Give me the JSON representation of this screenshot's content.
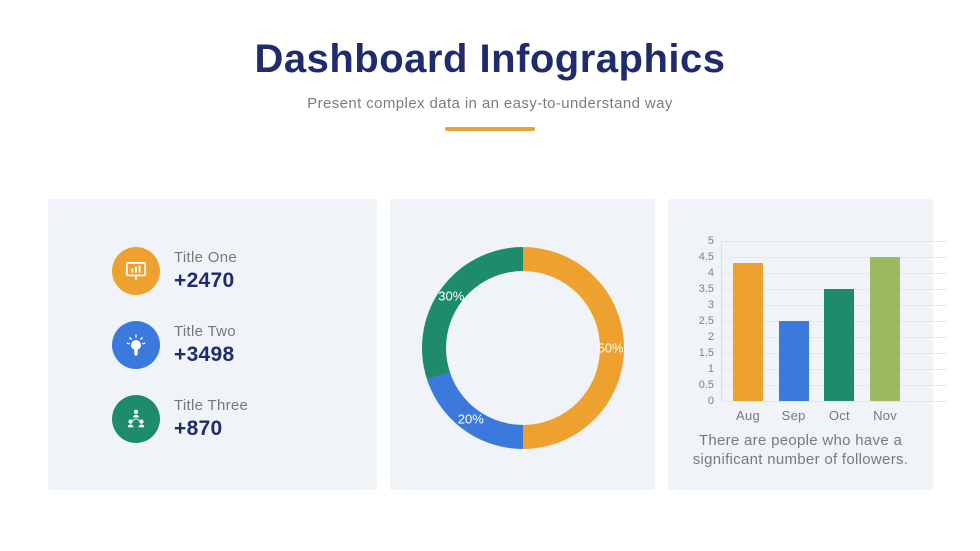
{
  "slide": {
    "title": "Dashboard Infographics",
    "subtitle": "Present complex data in an easy-to-understand way",
    "accent_color": "#E9A23B",
    "heading_color": "#1F2B6C",
    "panel_background": "#F0F4F8"
  },
  "stats": {
    "items": [
      {
        "label": "Title One",
        "value": "+2470",
        "color": "#EFA12F",
        "icon": "presentation-chart-icon"
      },
      {
        "label": "Title Two",
        "value": "+3498",
        "color": "#3B7ADC",
        "icon": "lightbulb-icon"
      },
      {
        "label": "Title Three",
        "value": "+870",
        "color": "#1E8C6B",
        "icon": "org-chart-icon"
      }
    ]
  },
  "chart_data": [
    {
      "type": "pie",
      "subtype": "donut",
      "start_angle_deg": 0,
      "direction": "clockwise",
      "label_color": "#FFFFFF",
      "slices": [
        {
          "label": "50%",
          "value": 50,
          "color": "#EFA12F"
        },
        {
          "label": "20%",
          "value": 20,
          "color": "#3B7ADC"
        },
        {
          "label": "30%",
          "value": 30,
          "color": "#1E8C6B"
        }
      ]
    },
    {
      "type": "bar",
      "categories": [
        "Aug",
        "Sep",
        "Oct",
        "Nov"
      ],
      "values": [
        4.3,
        2.5,
        3.5,
        4.5
      ],
      "colors": [
        "#EFA12F",
        "#3B7ADC",
        "#1E8C6B",
        "#9DB962"
      ],
      "title": "",
      "xlabel": "",
      "ylabel": "",
      "ylim": [
        0,
        5
      ],
      "yticks": [
        0,
        0.5,
        1,
        1.5,
        2,
        2.5,
        3,
        3.5,
        4,
        4.5,
        5
      ],
      "grid": true,
      "legend": "none",
      "caption": "There are people who have a significant number of followers."
    }
  ]
}
